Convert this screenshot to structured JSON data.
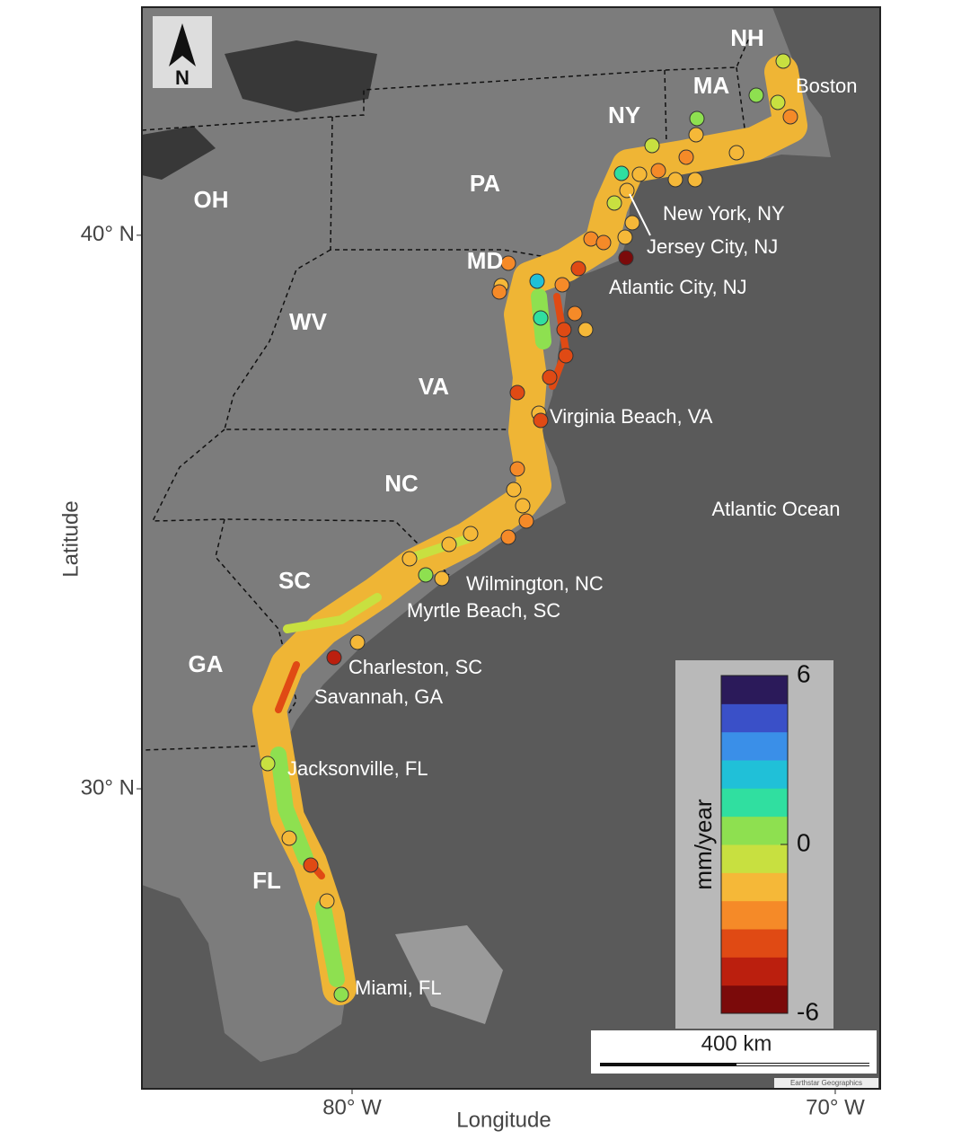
{
  "map": {
    "states": [
      "NH",
      "MA",
      "NY",
      "PA",
      "OH",
      "MD",
      "WV",
      "VA",
      "NC",
      "SC",
      "GA",
      "FL"
    ],
    "cities": [
      "Boston",
      "New York, NY",
      "Jersey City, NJ",
      "Atlantic City, NJ",
      "Virginia Beach, VA",
      "Wilmington, NC",
      "Myrtle Beach, SC",
      "Charleston, SC",
      "Savannah, GA",
      "Jacksonville, FL",
      "Miami, FL"
    ],
    "ocean_label": "Atlantic Ocean",
    "north_label": "N",
    "x_label": "Longitude",
    "y_label": "Latitude",
    "xlim": [
      -84.35,
      -69.07
    ],
    "ylim": [
      24.58,
      44.12
    ],
    "xticks": [
      {
        "value": -80,
        "label": "80° W"
      },
      {
        "value": -70,
        "label": "70° W"
      }
    ],
    "yticks": [
      {
        "value": 40,
        "label": "40° N"
      },
      {
        "value": 30,
        "label": "30° N"
      }
    ],
    "scale_bar": "400 km",
    "attribution": "Earthstar Geographics",
    "colorbar": {
      "label": "mm/year",
      "range": [
        -6,
        6
      ],
      "ticks": [
        6,
        0,
        -6
      ],
      "colors": [
        "#7b0a0a",
        "#bb1f0e",
        "#e04a14",
        "#f58a28",
        "#f5b838",
        "#c8e040",
        "#8ee050",
        "#30dfa0",
        "#20c0d8",
        "#3a8fe8",
        "#3a50c8",
        "#2b1a5a"
      ]
    }
  }
}
